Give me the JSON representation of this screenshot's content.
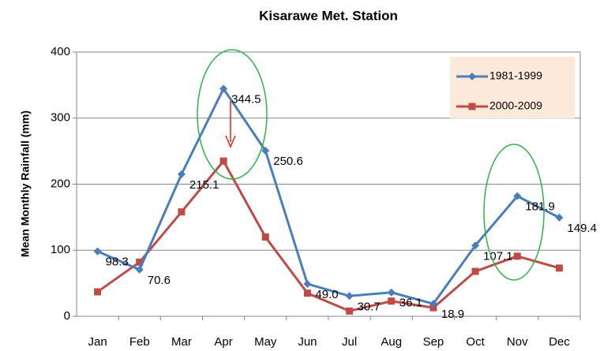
{
  "chart_data": {
    "type": "line",
    "title": "Kisarawe Met. Station",
    "y_label": "Mean Monthly Rainfall (mm)",
    "categories": [
      "Jan",
      "Feb",
      "Mar",
      "Apr",
      "May",
      "Jun",
      "Jul",
      "Aug",
      "Sep",
      "Oct",
      "Nov",
      "Dec"
    ],
    "series": [
      {
        "name": "1981-1999",
        "color": "#4a7ebb",
        "marker": "diamond",
        "values": [
          98.3,
          70.6,
          215.1,
          344.5,
          250.6,
          49.0,
          30.7,
          36.1,
          18.9,
          107.1,
          181.9,
          149.4
        ],
        "value_labels": [
          "98.3",
          "70.6",
          "215.1",
          "344.5",
          "250.6",
          "49.0",
          "30.7",
          "36.1",
          "18.9",
          "107.1",
          "181.9",
          "149.4"
        ]
      },
      {
        "name": "2000-2009",
        "color": "#be4b48",
        "marker": "square",
        "values": [
          37,
          82,
          158,
          235,
          120,
          35,
          8,
          23,
          13,
          68,
          91,
          73
        ]
      }
    ],
    "ylim": [
      0,
      400
    ],
    "yticks": [
      0,
      100,
      200,
      300,
      400
    ],
    "grid": true,
    "legend": "upper right"
  }
}
